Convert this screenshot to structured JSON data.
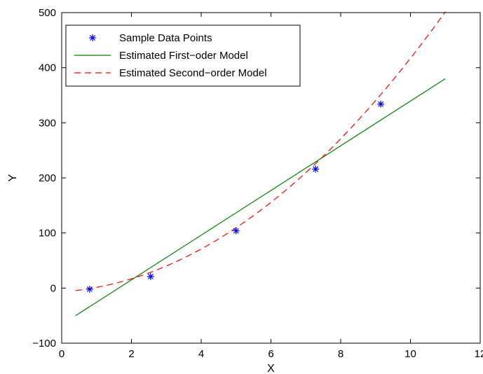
{
  "chart_data": {
    "type": "line",
    "title": "",
    "xlabel": "X",
    "ylabel": "Y",
    "xlim": [
      0,
      12
    ],
    "ylim": [
      -100,
      500
    ],
    "xticks": [
      0,
      2,
      4,
      6,
      8,
      10,
      12
    ],
    "yticks": [
      -100,
      0,
      100,
      200,
      300,
      400,
      500
    ],
    "grid": false,
    "legend_position": "top-left",
    "series": [
      {
        "name": "Sample Data Points",
        "kind": "scatter",
        "marker": "asterisk",
        "color": "#0000ff",
        "x": [
          0.8,
          2.55,
          5.0,
          7.28,
          9.15
        ],
        "y": [
          -2,
          21,
          104,
          216,
          334
        ]
      },
      {
        "name": "Estimated First−oder Model",
        "kind": "line",
        "style": "solid",
        "color": "#008000",
        "x": [
          0.4,
          11.0
        ],
        "y": [
          -50,
          380
        ]
      },
      {
        "name": "Estimated Second−order Model",
        "kind": "curve",
        "style": "dashed",
        "color": "#ff0000",
        "equation": "y = 3.83*x^2 + 4.07*x - 6.6",
        "coefficients": [
          3.83,
          4.07,
          -6.6
        ],
        "x_range": [
          0.4,
          11.0
        ]
      }
    ]
  }
}
